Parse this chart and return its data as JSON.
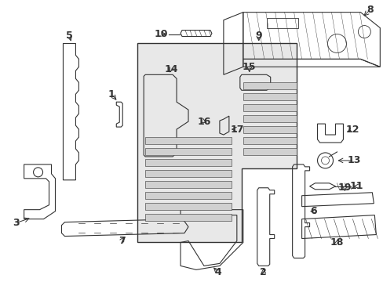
{
  "background_color": "#ffffff",
  "line_color": "#333333",
  "fill_light": "#e8e8e8",
  "fill_mid": "#d0d0d0",
  "fill_dark": "#b0b0b0",
  "figure_width": 4.89,
  "figure_height": 3.6,
  "dpi": 100,
  "label_fontsize": 9,
  "label_fontsize_sm": 8
}
